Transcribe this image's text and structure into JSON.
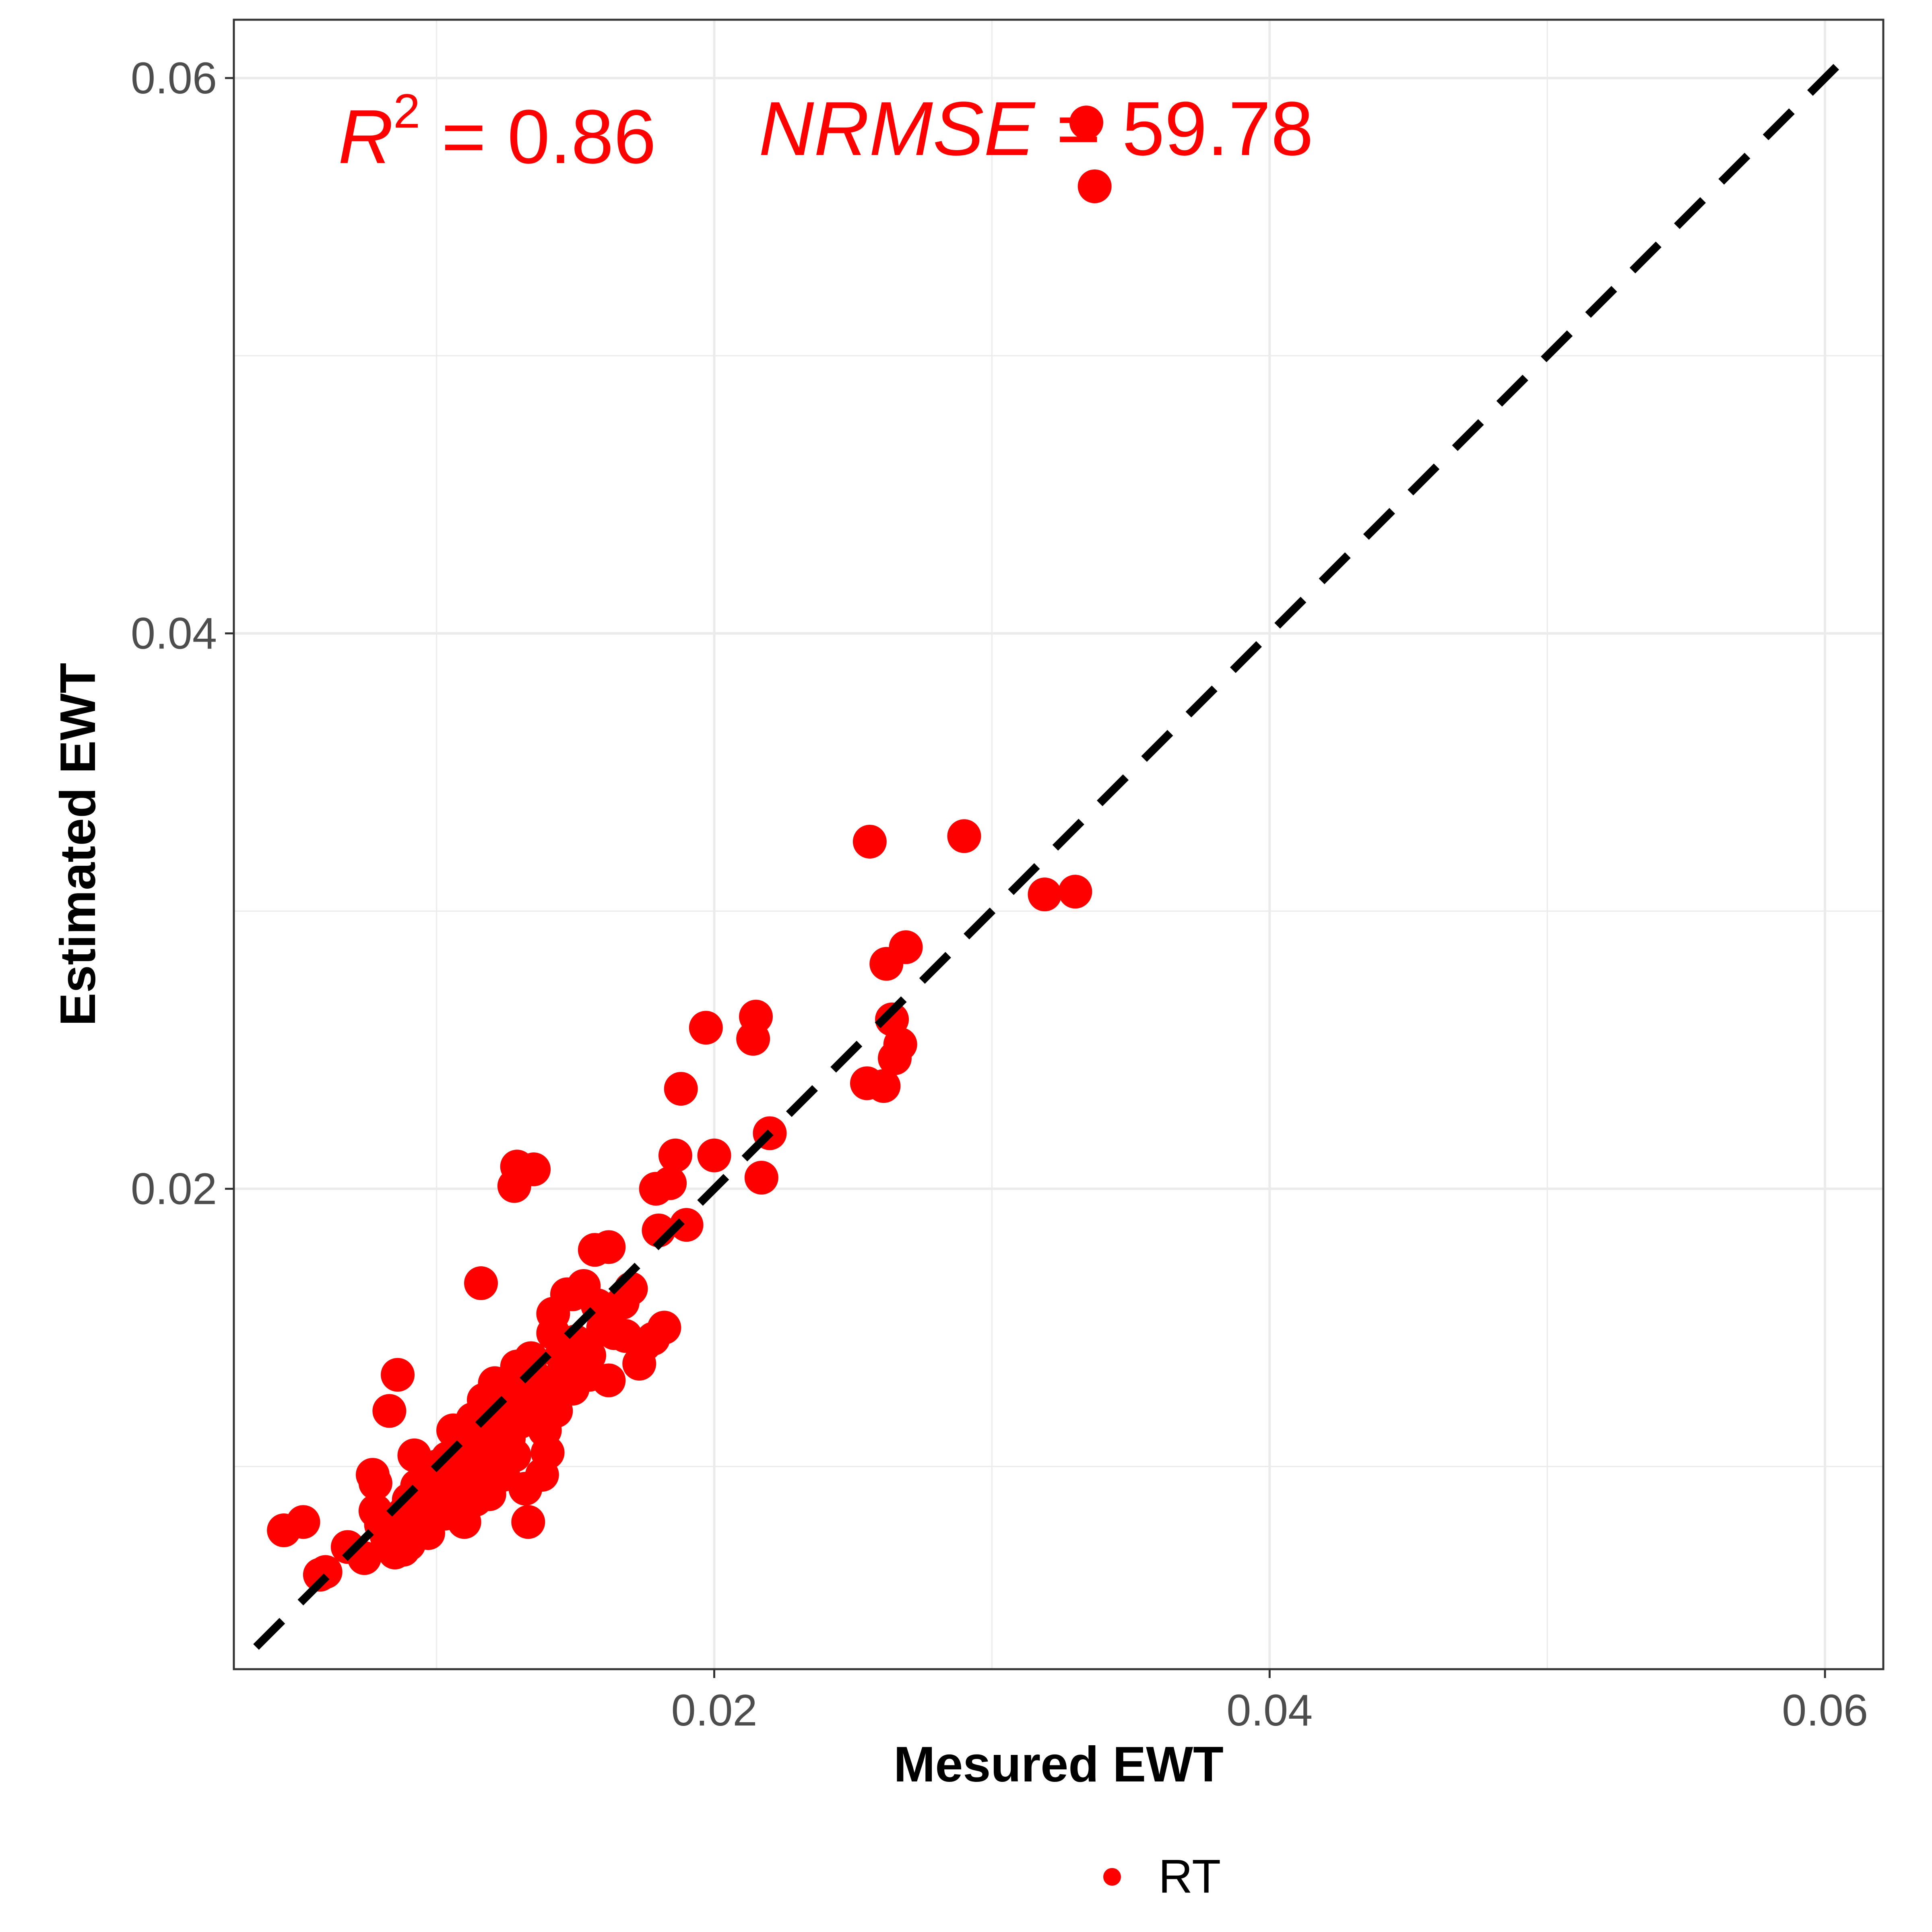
{
  "chart_data": {
    "type": "scatter",
    "xlabel": "Mesured EWT",
    "ylabel": "Estimated EWT",
    "xlim": [
      0.0027,
      0.0621
    ],
    "ylim": [
      0.0027,
      0.0621
    ],
    "x_ticks": [
      0.02,
      0.04,
      0.06
    ],
    "x_tick_labels": [
      "0.02",
      "0.04",
      "0.06"
    ],
    "y_ticks": [
      0.02,
      0.04,
      0.06
    ],
    "y_tick_labels": [
      "0.02",
      "0.04",
      "0.06"
    ],
    "grid": true,
    "reference_line": {
      "type": "identity",
      "style": "dashed",
      "color": "#000000",
      "from": 0.0035,
      "to": 0.061
    },
    "annotations": {
      "r2_label": "R",
      "r2_sup": "2",
      "r2_value": " = 0.86",
      "nrmse_label": "NRMSE",
      "nrmse_value": " = 59.78"
    },
    "legend": {
      "position": "bottom",
      "entries": [
        "RT"
      ]
    },
    "series": [
      {
        "name": "RT",
        "color": "#ff0000",
        "points": [
          [
            0.0334,
            0.0584
          ],
          [
            0.0337,
            0.0561
          ],
          [
            0.0052,
            0.008
          ],
          [
            0.0058,
            0.0061
          ],
          [
            0.0068,
            0.0071
          ],
          [
            0.0074,
            0.0067
          ],
          [
            0.0078,
            0.0094
          ],
          [
            0.0078,
            0.0084
          ],
          [
            0.008,
            0.0079
          ],
          [
            0.0082,
            0.0075
          ],
          [
            0.0083,
            0.012
          ],
          [
            0.0085,
            0.0069
          ],
          [
            0.0087,
            0.0078
          ],
          [
            0.0088,
            0.0083
          ],
          [
            0.009,
            0.0072
          ],
          [
            0.009,
            0.0088
          ],
          [
            0.0092,
            0.0104
          ],
          [
            0.0093,
            0.0093
          ],
          [
            0.0095,
            0.0085
          ],
          [
            0.0095,
            0.0081
          ],
          [
            0.0096,
            0.008
          ],
          [
            0.0097,
            0.0076
          ],
          [
            0.0098,
            0.0098
          ],
          [
            0.0098,
            0.0089
          ],
          [
            0.01,
            0.01
          ],
          [
            0.01,
            0.0094
          ],
          [
            0.0101,
            0.0088
          ],
          [
            0.0103,
            0.0083
          ],
          [
            0.0104,
            0.0103
          ],
          [
            0.0105,
            0.0097
          ],
          [
            0.0106,
            0.0113
          ],
          [
            0.0107,
            0.0091
          ],
          [
            0.0108,
            0.0085
          ],
          [
            0.011,
            0.008
          ],
          [
            0.011,
            0.0108
          ],
          [
            0.0111,
            0.01
          ],
          [
            0.0112,
            0.0094
          ],
          [
            0.0113,
            0.0117
          ],
          [
            0.0114,
            0.0088
          ],
          [
            0.0115,
            0.0111
          ],
          [
            0.0116,
            0.0104
          ],
          [
            0.0116,
            0.0099
          ],
          [
            0.0117,
            0.0124
          ],
          [
            0.0118,
            0.0093
          ],
          [
            0.0119,
            0.009
          ],
          [
            0.012,
            0.0107
          ],
          [
            0.0121,
            0.013
          ],
          [
            0.0122,
            0.01
          ],
          [
            0.0123,
            0.0113
          ],
          [
            0.0124,
            0.0097
          ],
          [
            0.0125,
            0.012
          ],
          [
            0.0126,
            0.011
          ],
          [
            0.0128,
            0.0104
          ],
          [
            0.0129,
            0.0136
          ],
          [
            0.013,
            0.0126
          ],
          [
            0.013,
            0.0116
          ],
          [
            0.0132,
            0.0092
          ],
          [
            0.0133,
            0.008
          ],
          [
            0.0134,
            0.0139
          ],
          [
            0.0135,
            0.0123
          ],
          [
            0.0137,
            0.0131
          ],
          [
            0.0139,
            0.0113
          ],
          [
            0.014,
            0.0105
          ],
          [
            0.0141,
            0.0127
          ],
          [
            0.0142,
            0.0148
          ],
          [
            0.0143,
            0.012
          ],
          [
            0.0145,
            0.014
          ],
          [
            0.0146,
            0.0135
          ],
          [
            0.0147,
            0.0162
          ],
          [
            0.0149,
            0.0128
          ],
          [
            0.015,
            0.0145
          ],
          [
            0.0152,
            0.0141
          ],
          [
            0.0153,
            0.0165
          ],
          [
            0.0155,
            0.0133
          ],
          [
            0.0157,
            0.0178
          ],
          [
            0.0158,
            0.0158
          ],
          [
            0.016,
            0.015
          ],
          [
            0.0162,
            0.0179
          ],
          [
            0.0162,
            0.0131
          ],
          [
            0.0164,
            0.0148
          ],
          [
            0.0167,
            0.0159
          ],
          [
            0.0168,
            0.0147
          ],
          [
            0.017,
            0.0164
          ],
          [
            0.0173,
            0.0137
          ],
          [
            0.0175,
            0.0144
          ],
          [
            0.0178,
            0.0146
          ],
          [
            0.0179,
            0.02
          ],
          [
            0.018,
            0.0185
          ],
          [
            0.0182,
            0.015
          ],
          [
            0.0184,
            0.0202
          ],
          [
            0.0186,
            0.0212
          ],
          [
            0.0188,
            0.0236
          ],
          [
            0.019,
            0.0187
          ],
          [
            0.0197,
            0.0258
          ],
          [
            0.02,
            0.0212
          ],
          [
            0.0214,
            0.0254
          ],
          [
            0.0215,
            0.0262
          ],
          [
            0.0217,
            0.0204
          ],
          [
            0.022,
            0.022
          ],
          [
            0.0149,
            0.0162
          ],
          [
            0.0128,
            0.0201
          ],
          [
            0.0116,
            0.0166
          ],
          [
            0.0086,
            0.0133
          ],
          [
            0.0129,
            0.0208
          ],
          [
            0.0135,
            0.0207
          ],
          [
            0.006,
            0.0062
          ],
          [
            0.0088,
            0.007
          ],
          [
            0.0138,
            0.0097
          ],
          [
            0.0255,
            0.0238
          ],
          [
            0.0256,
            0.0325
          ],
          [
            0.0261,
            0.0237
          ],
          [
            0.0262,
            0.0281
          ],
          [
            0.0264,
            0.0261
          ],
          [
            0.0265,
            0.0247
          ],
          [
            0.0267,
            0.0252
          ],
          [
            0.0269,
            0.0287
          ],
          [
            0.029,
            0.0327
          ],
          [
            0.0319,
            0.0306
          ],
          [
            0.033,
            0.0307
          ],
          [
            0.0045,
            0.0077
          ],
          [
            0.0077,
            0.0097
          ],
          [
            0.0114,
            0.0095
          ],
          [
            0.0124,
            0.0113
          ],
          [
            0.0142,
            0.0155
          ],
          [
            0.0155,
            0.014
          ]
        ]
      }
    ]
  }
}
